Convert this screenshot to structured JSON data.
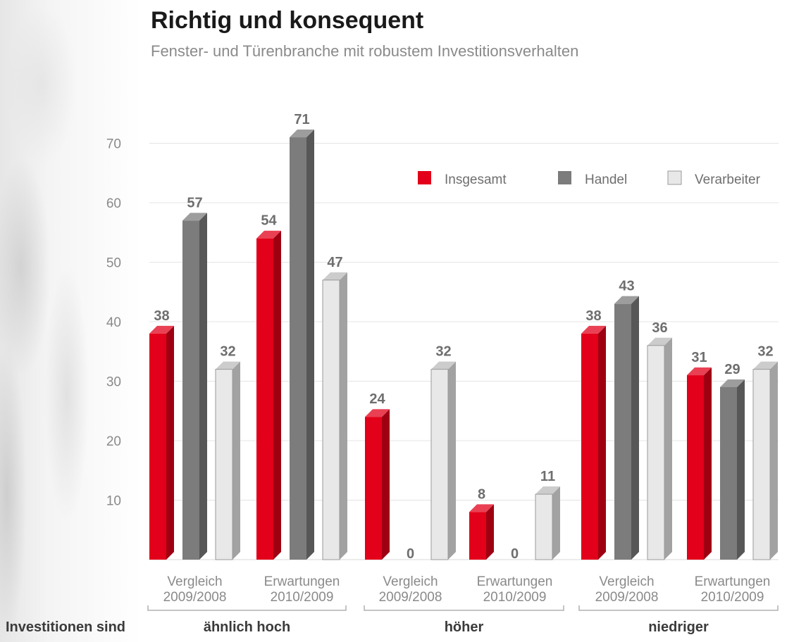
{
  "title": "Richtig und konsequent",
  "subtitle": "Fenster- und Türenbranche mit robustem Investitionsverhalten",
  "chart_data": {
    "type": "bar",
    "title": "Richtig und konsequent",
    "subtitle": "Fenster- und Türenbranche mit robustem Investitionsverhalten",
    "ylim": [
      0,
      72
    ],
    "yticks": [
      10,
      20,
      30,
      40,
      50,
      60,
      70
    ],
    "grid": true,
    "legend_position": "top-right",
    "row_label": "Investitionen sind",
    "series": [
      {
        "name": "Insgesamt",
        "color": "#e2001a"
      },
      {
        "name": "Handel",
        "color": "#7c7c7c"
      },
      {
        "name": "Verarbeiter",
        "color": "#e8e8e8"
      }
    ],
    "groups": [
      {
        "label": "ähnlich hoch",
        "subgroups": [
          {
            "label": [
              "Vergleich",
              "2009/2008"
            ],
            "values": [
              38,
              57,
              32
            ]
          },
          {
            "label": [
              "Erwartungen",
              "2010/2009"
            ],
            "values": [
              54,
              71,
              47
            ]
          }
        ]
      },
      {
        "label": "höher",
        "subgroups": [
          {
            "label": [
              "Vergleich",
              "2009/2008"
            ],
            "values": [
              24,
              0,
              32
            ]
          },
          {
            "label": [
              "Erwartungen",
              "2010/2009"
            ],
            "values": [
              8,
              0,
              11
            ]
          }
        ]
      },
      {
        "label": "niedriger",
        "subgroups": [
          {
            "label": [
              "Vergleich",
              "2009/2008"
            ],
            "values": [
              38,
              43,
              36
            ]
          },
          {
            "label": [
              "Erwartungen",
              "2010/2009"
            ],
            "values": [
              31,
              29,
              32
            ]
          }
        ]
      }
    ]
  }
}
